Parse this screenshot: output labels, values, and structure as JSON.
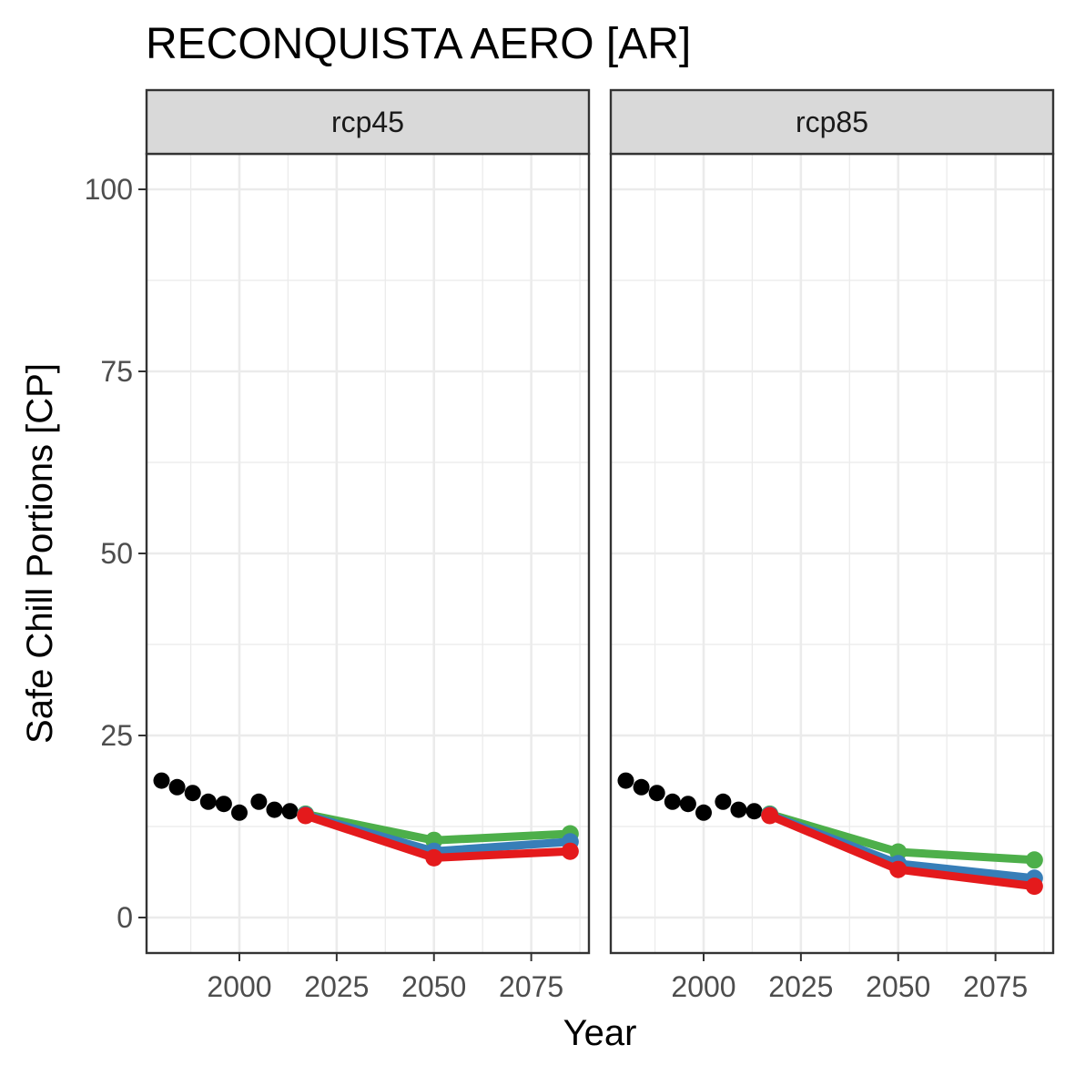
{
  "chart_data": {
    "type": "line",
    "title": "RECONQUISTA AERO [AR]",
    "xlabel": "Year",
    "ylabel": "Safe Chill Portions [CP]",
    "x_ticks": [
      2000,
      2025,
      2050,
      2075
    ],
    "y_ticks": [
      0,
      25,
      50,
      75,
      100
    ],
    "xlim": [
      1976,
      2090
    ],
    "ylim": [
      -5,
      105
    ],
    "grid": true,
    "legend": "none",
    "colors": {
      "historic": "#000000",
      "green": "#4DAF4A",
      "blue": "#377EB8",
      "red": "#E41A1C",
      "strip_fill": "#D9D9D9",
      "grid": "#EBEBEB",
      "panel_border": "#333333"
    },
    "panels": [
      {
        "label": "rcp45",
        "historic": {
          "x": [
            1980,
            1984,
            1988,
            1992,
            1996,
            2000,
            2005,
            2009,
            2013
          ],
          "y": [
            18.8,
            17.9,
            17.1,
            15.9,
            15.6,
            14.4,
            15.9,
            14.8,
            14.6
          ]
        },
        "series": [
          {
            "color": "green",
            "x": [
              2017,
              2050,
              2085
            ],
            "y": [
              14.2,
              10.6,
              11.5
            ]
          },
          {
            "color": "blue",
            "x": [
              2017,
              2050,
              2085
            ],
            "y": [
              14.1,
              9.1,
              10.4
            ]
          },
          {
            "color": "red",
            "x": [
              2017,
              2050,
              2085
            ],
            "y": [
              14.0,
              8.2,
              9.1
            ]
          }
        ]
      },
      {
        "label": "rcp85",
        "historic": {
          "x": [
            1980,
            1984,
            1988,
            1992,
            1996,
            2000,
            2005,
            2009,
            2013
          ],
          "y": [
            18.8,
            17.9,
            17.1,
            15.9,
            15.6,
            14.4,
            15.9,
            14.8,
            14.6
          ]
        },
        "series": [
          {
            "color": "green",
            "x": [
              2017,
              2050,
              2085
            ],
            "y": [
              14.2,
              9.0,
              7.9
            ]
          },
          {
            "color": "blue",
            "x": [
              2017,
              2050,
              2085
            ],
            "y": [
              14.1,
              7.4,
              5.4
            ]
          },
          {
            "color": "red",
            "x": [
              2017,
              2050,
              2085
            ],
            "y": [
              14.0,
              6.6,
              4.3
            ]
          }
        ]
      }
    ]
  }
}
